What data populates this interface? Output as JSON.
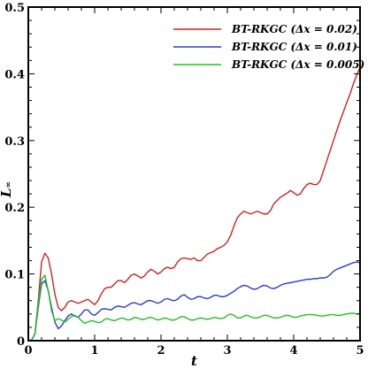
{
  "chart_data": {
    "type": "line",
    "xlabel": "t",
    "ylabel": "L",
    "ylabel_sub": "∞",
    "xlim": [
      0,
      5
    ],
    "ylim": [
      0,
      0.5
    ],
    "x_ticks": [
      0,
      1,
      2,
      3,
      4,
      5
    ],
    "x_tick_labels": [
      "0",
      "1",
      "2",
      "3",
      "4",
      "5"
    ],
    "y_ticks": [
      0,
      0.1,
      0.2,
      0.3,
      0.4,
      0.5
    ],
    "y_tick_labels": [
      "0",
      "0.1",
      "0.2",
      "0.3",
      "0.4",
      "0.5"
    ],
    "grid": false,
    "legend_position": "top-right",
    "series": [
      {
        "name": "BT-RKGC (Δx = 0.02)",
        "color": "#d42020",
        "x": [
          0,
          0.05,
          0.1,
          0.15,
          0.2,
          0.25,
          0.3,
          0.35,
          0.4,
          0.45,
          0.5,
          0.55,
          0.6,
          0.65,
          0.7,
          0.75,
          0.8,
          0.85,
          0.9,
          0.95,
          1.0,
          1.05,
          1.1,
          1.15,
          1.2,
          1.25,
          1.3,
          1.35,
          1.4,
          1.45,
          1.5,
          1.55,
          1.6,
          1.65,
          1.7,
          1.75,
          1.8,
          1.85,
          1.9,
          1.95,
          2.0,
          2.05,
          2.1,
          2.15,
          2.2,
          2.25,
          2.3,
          2.35,
          2.4,
          2.45,
          2.5,
          2.55,
          2.6,
          2.65,
          2.7,
          2.75,
          2.8,
          2.85,
          2.9,
          2.95,
          3.0,
          3.05,
          3.1,
          3.15,
          3.2,
          3.25,
          3.3,
          3.35,
          3.4,
          3.45,
          3.5,
          3.55,
          3.6,
          3.65,
          3.7,
          3.75,
          3.8,
          3.85,
          3.9,
          3.95,
          4.0,
          4.05,
          4.1,
          4.15,
          4.2,
          4.25,
          4.3,
          4.35,
          4.4,
          4.45,
          4.5,
          4.55,
          4.6,
          4.65,
          4.7,
          4.75,
          4.8,
          4.85,
          4.9,
          4.95,
          5.0
        ],
        "y": [
          0,
          0.001,
          0.01,
          0.06,
          0.118,
          0.131,
          0.124,
          0.1,
          0.07,
          0.05,
          0.045,
          0.05,
          0.058,
          0.06,
          0.058,
          0.056,
          0.058,
          0.06,
          0.062,
          0.058,
          0.054,
          0.06,
          0.07,
          0.078,
          0.08,
          0.08,
          0.085,
          0.09,
          0.09,
          0.087,
          0.092,
          0.098,
          0.1,
          0.097,
          0.094,
          0.097,
          0.103,
          0.107,
          0.104,
          0.1,
          0.103,
          0.108,
          0.11,
          0.108,
          0.11,
          0.118,
          0.123,
          0.124,
          0.123,
          0.122,
          0.124,
          0.12,
          0.12,
          0.125,
          0.13,
          0.132,
          0.134,
          0.138,
          0.14,
          0.143,
          0.148,
          0.158,
          0.172,
          0.184,
          0.19,
          0.194,
          0.192,
          0.19,
          0.192,
          0.194,
          0.192,
          0.19,
          0.19,
          0.195,
          0.205,
          0.21,
          0.215,
          0.218,
          0.221,
          0.225,
          0.222,
          0.218,
          0.22,
          0.228,
          0.234,
          0.236,
          0.234,
          0.234,
          0.24,
          0.255,
          0.27,
          0.285,
          0.3,
          0.315,
          0.33,
          0.343,
          0.357,
          0.37,
          0.385,
          0.398,
          0.41
        ]
      },
      {
        "name": "BT-RKGC (Δx = 0.01)",
        "color": "#2a3ae0",
        "x": [
          0,
          0.05,
          0.1,
          0.15,
          0.2,
          0.25,
          0.3,
          0.35,
          0.4,
          0.45,
          0.5,
          0.55,
          0.6,
          0.65,
          0.7,
          0.75,
          0.8,
          0.85,
          0.9,
          0.95,
          1.0,
          1.05,
          1.1,
          1.15,
          1.2,
          1.25,
          1.3,
          1.35,
          1.4,
          1.45,
          1.5,
          1.55,
          1.6,
          1.65,
          1.7,
          1.75,
          1.8,
          1.85,
          1.9,
          1.95,
          2.0,
          2.05,
          2.1,
          2.15,
          2.2,
          2.25,
          2.3,
          2.35,
          2.4,
          2.45,
          2.5,
          2.55,
          2.6,
          2.65,
          2.7,
          2.75,
          2.8,
          2.85,
          2.9,
          2.95,
          3.0,
          3.05,
          3.1,
          3.15,
          3.2,
          3.25,
          3.3,
          3.35,
          3.4,
          3.45,
          3.5,
          3.55,
          3.6,
          3.65,
          3.7,
          3.75,
          3.8,
          3.85,
          3.9,
          3.95,
          4.0,
          4.05,
          4.1,
          4.15,
          4.2,
          4.25,
          4.3,
          4.35,
          4.4,
          4.45,
          4.5,
          4.55,
          4.6,
          4.65,
          4.7,
          4.75,
          4.8,
          4.85,
          4.9,
          4.95,
          5.0
        ],
        "y": [
          0,
          0.001,
          0.01,
          0.05,
          0.085,
          0.09,
          0.075,
          0.05,
          0.028,
          0.018,
          0.022,
          0.03,
          0.037,
          0.04,
          0.037,
          0.035,
          0.04,
          0.046,
          0.046,
          0.04,
          0.038,
          0.042,
          0.047,
          0.048,
          0.047,
          0.046,
          0.05,
          0.052,
          0.051,
          0.05,
          0.053,
          0.056,
          0.057,
          0.055,
          0.054,
          0.057,
          0.06,
          0.06,
          0.058,
          0.056,
          0.058,
          0.062,
          0.063,
          0.061,
          0.06,
          0.062,
          0.067,
          0.069,
          0.065,
          0.062,
          0.063,
          0.066,
          0.066,
          0.064,
          0.063,
          0.065,
          0.068,
          0.068,
          0.066,
          0.066,
          0.068,
          0.071,
          0.074,
          0.078,
          0.081,
          0.083,
          0.082,
          0.079,
          0.077,
          0.078,
          0.081,
          0.083,
          0.082,
          0.079,
          0.078,
          0.08,
          0.083,
          0.085,
          0.086,
          0.087,
          0.088,
          0.089,
          0.09,
          0.091,
          0.092,
          0.092,
          0.093,
          0.093,
          0.094,
          0.094,
          0.095,
          0.099,
          0.104,
          0.107,
          0.109,
          0.111,
          0.113,
          0.115,
          0.117,
          0.118,
          0.117
        ]
      },
      {
        "name": "BT-RKGC (Δx = 0.005)",
        "color": "#22c022",
        "x": [
          0,
          0.05,
          0.1,
          0.15,
          0.2,
          0.25,
          0.3,
          0.35,
          0.4,
          0.45,
          0.5,
          0.55,
          0.6,
          0.65,
          0.7,
          0.75,
          0.8,
          0.85,
          0.9,
          0.95,
          1.0,
          1.05,
          1.1,
          1.15,
          1.2,
          1.25,
          1.3,
          1.35,
          1.4,
          1.45,
          1.5,
          1.55,
          1.6,
          1.65,
          1.7,
          1.75,
          1.8,
          1.85,
          1.9,
          1.95,
          2.0,
          2.05,
          2.1,
          2.15,
          2.2,
          2.25,
          2.3,
          2.35,
          2.4,
          2.45,
          2.5,
          2.55,
          2.6,
          2.65,
          2.7,
          2.75,
          2.8,
          2.85,
          2.9,
          2.95,
          3.0,
          3.05,
          3.1,
          3.15,
          3.2,
          3.25,
          3.3,
          3.35,
          3.4,
          3.45,
          3.5,
          3.55,
          3.6,
          3.65,
          3.7,
          3.75,
          3.8,
          3.85,
          3.9,
          3.95,
          4.0,
          4.05,
          4.1,
          4.15,
          4.2,
          4.25,
          4.3,
          4.35,
          4.4,
          4.45,
          4.5,
          4.55,
          4.6,
          4.65,
          4.7,
          4.75,
          4.8,
          4.85,
          4.9,
          4.95,
          5.0
        ],
        "y": [
          0,
          0.001,
          0.01,
          0.055,
          0.092,
          0.098,
          0.075,
          0.045,
          0.03,
          0.033,
          0.031,
          0.028,
          0.032,
          0.036,
          0.038,
          0.035,
          0.03,
          0.026,
          0.028,
          0.03,
          0.029,
          0.027,
          0.028,
          0.032,
          0.033,
          0.031,
          0.03,
          0.032,
          0.034,
          0.033,
          0.031,
          0.032,
          0.035,
          0.034,
          0.032,
          0.032,
          0.034,
          0.035,
          0.033,
          0.031,
          0.032,
          0.034,
          0.033,
          0.031,
          0.031,
          0.033,
          0.036,
          0.036,
          0.033,
          0.031,
          0.031,
          0.033,
          0.034,
          0.033,
          0.032,
          0.033,
          0.035,
          0.034,
          0.033,
          0.034,
          0.038,
          0.04,
          0.038,
          0.034,
          0.034,
          0.037,
          0.038,
          0.036,
          0.034,
          0.034,
          0.036,
          0.038,
          0.038,
          0.036,
          0.034,
          0.034,
          0.035,
          0.037,
          0.038,
          0.037,
          0.035,
          0.035,
          0.037,
          0.038,
          0.039,
          0.039,
          0.039,
          0.038,
          0.037,
          0.037,
          0.038,
          0.039,
          0.039,
          0.038,
          0.038,
          0.039,
          0.04,
          0.041,
          0.041,
          0.04,
          0.04
        ]
      }
    ]
  }
}
